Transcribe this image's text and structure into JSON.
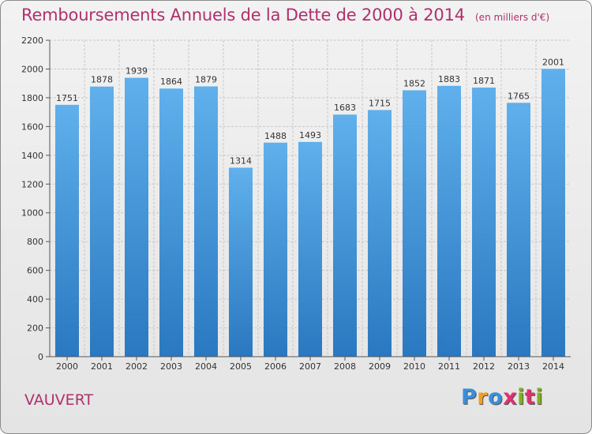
{
  "title": "Remboursements Annuels de la Dette de 2000 à 2014",
  "unit": "(en milliers d'€)",
  "city": "VAUVERT",
  "logo": {
    "text": "Proxiti",
    "letters": [
      "P",
      "r",
      "o",
      "x",
      "i",
      "t",
      "i"
    ],
    "colors": [
      "#3a8fd8",
      "#f0a020",
      "#3a8fd8",
      "#e03070",
      "#80b020",
      "#e03070",
      "#80b020"
    ]
  },
  "colors": {
    "title": "#b0306e",
    "bar_top": "#5fb0ec",
    "bar_bottom": "#2a78c0",
    "grid": "#c8c8c8"
  },
  "chart_data": {
    "type": "bar",
    "title": "Remboursements Annuels de la Dette de 2000 à 2014",
    "xlabel": "",
    "ylabel": "",
    "ylim": [
      0,
      2200
    ],
    "yticks": [
      0,
      200,
      400,
      600,
      800,
      1000,
      1200,
      1400,
      1600,
      1800,
      2000,
      2200
    ],
    "categories": [
      "2000",
      "2001",
      "2002",
      "2003",
      "2004",
      "2005",
      "2006",
      "2007",
      "2008",
      "2009",
      "2010",
      "2011",
      "2012",
      "2013",
      "2014"
    ],
    "values": [
      1751,
      1878,
      1939,
      1864,
      1879,
      1314,
      1488,
      1493,
      1683,
      1715,
      1852,
      1883,
      1871,
      1765,
      2001
    ],
    "grid": true
  }
}
